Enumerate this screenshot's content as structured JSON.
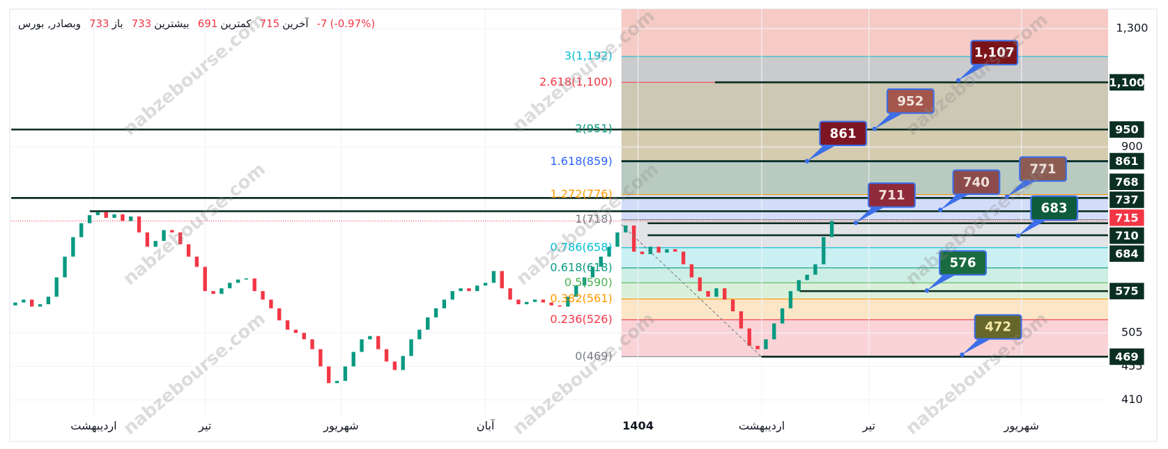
{
  "header": {
    "symbol": "وبصادر, بورس",
    "open": 733,
    "open_label": "باز",
    "high": 733,
    "high_label": "بیشترین",
    "low": 691,
    "low_label": "کمترین",
    "last": 715,
    "last_label": "آخرین",
    "change": -7,
    "change_pct": "(-0.97%)"
  },
  "chart_data": {
    "type": "candlestick",
    "log_scale": true,
    "grid": true,
    "ylim": [
      391,
      1381
    ],
    "xlim": [
      -0.5,
      132.5
    ],
    "yticks": [
      {
        "value": 1300,
        "label": "1,300"
      },
      900,
      505,
      455,
      410
    ],
    "xticks": [
      {
        "value": 9.5,
        "label": "اردیبهشت"
      },
      {
        "value": 23,
        "label": "تیر"
      },
      {
        "value": 39.5,
        "label": "شهریور"
      },
      {
        "value": 57,
        "label": "آبان"
      },
      {
        "value": 75.5,
        "label": "1404"
      },
      {
        "value": 90.5,
        "label": "اردیبهشت"
      },
      {
        "value": 103.5,
        "label": "تیر"
      },
      {
        "value": 122,
        "label": "شهریور"
      }
    ],
    "up_color": "#089981",
    "down_color": "#f23645",
    "open": [
      550,
      555,
      560,
      548,
      552,
      565,
      600,
      640,
      680,
      710,
      728,
      735,
      722,
      730,
      715,
      725,
      690,
      660,
      672,
      695,
      690,
      665,
      640,
      620,
      575,
      570,
      580,
      590,
      596,
      598,
      575,
      560,
      545,
      525,
      510,
      505,
      495,
      480,
      455,
      432,
      435,
      455,
      476,
      495,
      500,
      480,
      462,
      450,
      470,
      495,
      510,
      530,
      545,
      560,
      575,
      580,
      575,
      585,
      590,
      612,
      580,
      560,
      552,
      556,
      560,
      555,
      550,
      548,
      565,
      585,
      600,
      620,
      640,
      660,
      690,
      705,
      650,
      645,
      660,
      648,
      655,
      650,
      625,
      600,
      575,
      565,
      580,
      560,
      540,
      512,
      485,
      480,
      495,
      520,
      545,
      575,
      595,
      605,
      625,
      680
    ],
    "close": [
      555,
      560,
      548,
      552,
      565,
      600,
      640,
      680,
      710,
      728,
      735,
      722,
      730,
      715,
      725,
      690,
      660,
      672,
      695,
      690,
      665,
      640,
      620,
      575,
      570,
      580,
      590,
      596,
      598,
      575,
      560,
      545,
      525,
      510,
      505,
      495,
      480,
      455,
      432,
      435,
      455,
      476,
      495,
      500,
      480,
      462,
      450,
      470,
      495,
      510,
      530,
      545,
      560,
      575,
      580,
      575,
      585,
      590,
      612,
      580,
      560,
      552,
      556,
      560,
      555,
      550,
      548,
      565,
      585,
      600,
      620,
      640,
      660,
      690,
      705,
      650,
      645,
      660,
      648,
      655,
      650,
      625,
      600,
      575,
      565,
      580,
      560,
      540,
      512,
      485,
      480,
      495,
      520,
      545,
      575,
      595,
      605,
      625,
      680,
      715
    ],
    "fib_levels": [
      {
        "label": "0(469)",
        "value": 469,
        "color": "#787b86",
        "fill": "#f9d3d6"
      },
      {
        "label": "0.236(526)",
        "value": 526,
        "color": "#f23645",
        "fill": "#fde6c8"
      },
      {
        "label": "0.382(561)",
        "value": 561,
        "color": "#ff9800",
        "fill": "#dbf0da"
      },
      {
        "label": "0.5(590)",
        "value": 590,
        "color": "#4caf50",
        "fill": "#cdeee4"
      },
      {
        "label": "0.618(618)",
        "value": 618,
        "color": "#089981",
        "fill": "#caf0f3"
      },
      {
        "label": "0.786(658)",
        "value": 658,
        "color": "#00bcd4",
        "fill": "#e2e3e7"
      },
      {
        "label": "1(718)",
        "value": 718,
        "color": "#787b86",
        "fill": "#d3ddf8"
      },
      {
        "label": "1.272(776)",
        "value": 776,
        "color": "#ff9800",
        "fill": "#b9cac0"
      },
      {
        "label": "1.618(859)",
        "value": 859,
        "color": "#2962ff",
        "fill": "#d5cbaf"
      },
      {
        "label": "2(951)",
        "value": 951,
        "color": "#089981",
        "fill": "#cdc8b3"
      },
      {
        "label": "2.618(1,100)",
        "value": 1100,
        "color": "#f23645",
        "fill": "#c9cbcc"
      },
      {
        "label": "3(1,192)",
        "value": 1192,
        "color": "#00bcd4",
        "fill": "#f6cbc5"
      }
    ],
    "price_lines": [
      {
        "value": 1100,
        "label": "1,100"
      },
      950,
      861,
      768,
      737,
      710,
      684,
      575,
      469
    ],
    "price_line_color": "#0b2f22",
    "last_color": "#f23645",
    "callouts": [
      {
        "label": "1,107",
        "value": 1107,
        "color": "#7b1419",
        "text_color": "#ffffff"
      },
      {
        "label": "952",
        "value": 952,
        "color": "#a4564c",
        "text_color": "#f1e2dc"
      },
      {
        "label": "861",
        "value": 861,
        "color": "#7d1523",
        "text_color": "#ffffff"
      },
      {
        "label": "711",
        "value": 711,
        "color": "#8e2a3a",
        "text_color": "#f1e2dc"
      },
      {
        "label": "740",
        "value": 740,
        "color": "#8c4b4b",
        "text_color": "#f1e2dc"
      },
      {
        "label": "771",
        "value": 771,
        "color": "#8c5c52",
        "text_color": "#f1e2dc"
      },
      {
        "label": "683",
        "value": 683,
        "color": "#0f5c3c",
        "text_color": "#ffffff"
      },
      {
        "label": "576",
        "value": 576,
        "color": "#1a6b3f",
        "text_color": "#ffffff"
      },
      {
        "label": "472",
        "value": 472,
        "color": "#66662a",
        "text_color": "#f3e8a8"
      }
    ],
    "watermark": "nabzebourse.com"
  }
}
